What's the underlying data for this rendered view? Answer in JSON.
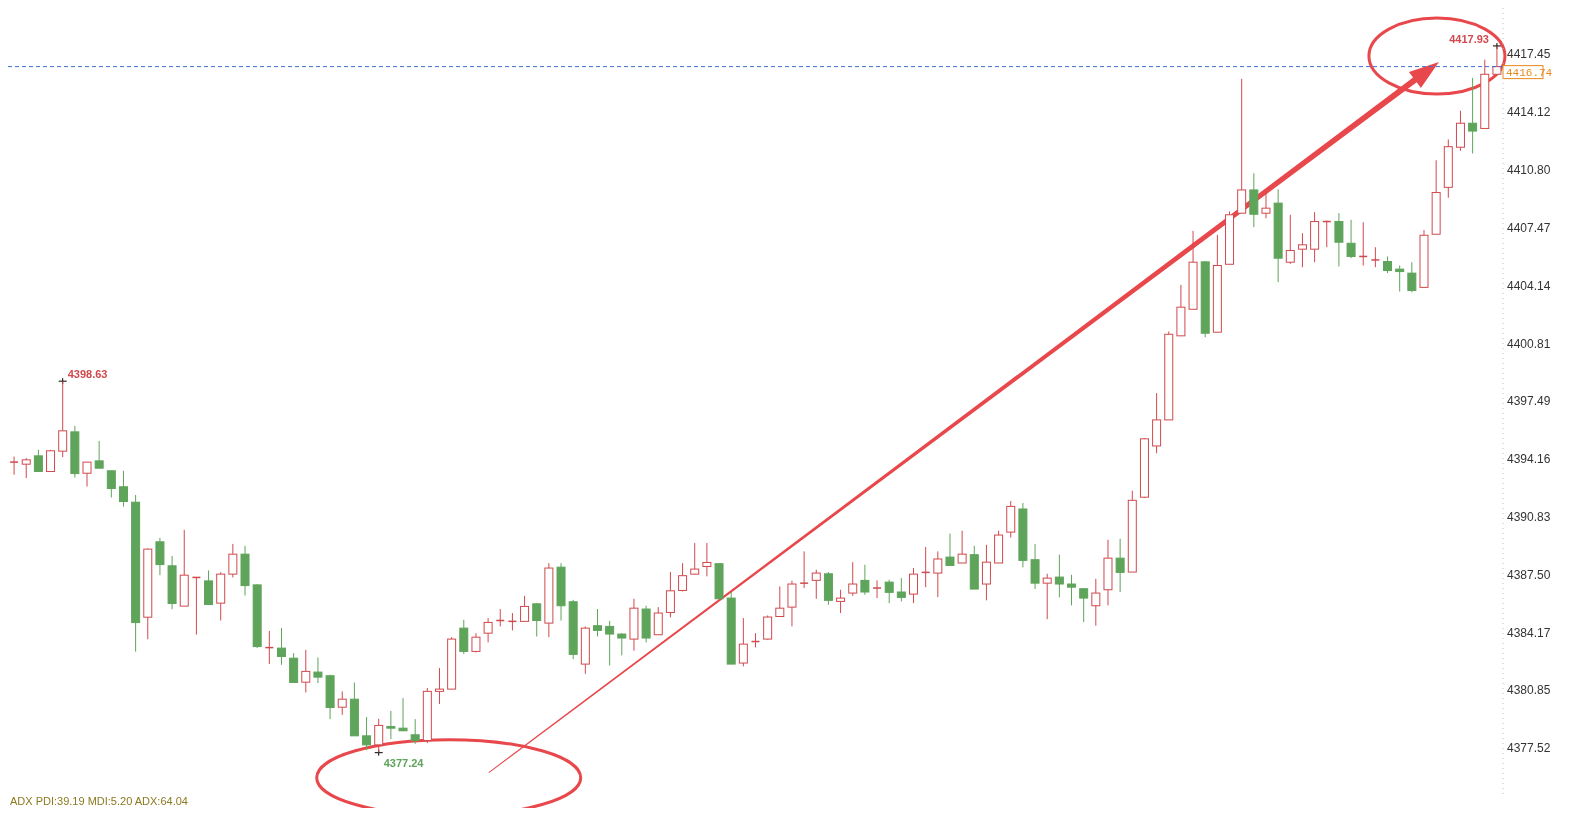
{
  "chart_data": {
    "type": "candlestick",
    "categories": [
      null,
      null,
      null,
      null,
      null,
      null,
      null,
      null,
      null,
      null,
      null,
      null,
      null,
      null,
      null,
      null,
      null,
      null,
      null,
      null,
      null,
      null,
      null,
      null,
      null,
      null,
      null,
      null,
      null,
      null,
      null,
      null,
      null,
      null,
      null,
      null,
      null,
      null,
      null,
      null,
      null,
      null,
      null,
      null,
      null,
      null,
      null,
      null,
      null,
      null,
      null,
      null,
      null,
      null,
      null,
      null,
      null,
      null,
      null,
      null,
      null,
      null,
      null,
      null,
      null,
      null,
      null,
      null,
      null,
      null,
      null,
      null,
      null,
      null,
      null,
      null,
      null,
      null,
      null,
      null,
      null,
      null,
      null,
      null,
      null,
      null,
      null,
      null,
      null,
      null,
      null,
      null,
      null,
      null,
      null,
      null,
      null,
      null,
      null,
      null,
      null,
      null,
      null,
      null,
      null,
      null,
      null,
      null,
      null,
      null,
      null,
      null,
      null,
      null,
      null,
      null,
      null,
      null,
      null,
      null,
      null,
      null,
      null
    ],
    "ohlc": [
      [
        4393.97,
        4394.29,
        4393.24,
        4393.97
      ],
      [
        4393.85,
        4394.2,
        4393.05,
        4394.1
      ],
      [
        4394.33,
        4394.68,
        4393.43,
        4393.43
      ],
      [
        4393.43,
        4394.68,
        4393.43,
        4394.62
      ],
      [
        4394.6,
        4398.63,
        4394.25,
        4395.77
      ],
      [
        4395.71,
        4396.06,
        4393.08,
        4393.31
      ],
      [
        4393.33,
        4393.97,
        4392.56,
        4393.97
      ],
      [
        4394.04,
        4395.19,
        4393.62,
        4393.62
      ],
      [
        4393.47,
        4393.47,
        4391.93,
        4392.45
      ],
      [
        4392.55,
        4393.47,
        4391.41,
        4391.7
      ],
      [
        4391.66,
        4392.08,
        4383.06,
        4384.73
      ],
      [
        4385.04,
        4389.0,
        4383.77,
        4388.96
      ],
      [
        4389.38,
        4389.61,
        4387.46,
        4388.07
      ],
      [
        4388.0,
        4388.57,
        4385.5,
        4385.83
      ],
      [
        4385.68,
        4390.07,
        4385.68,
        4387.46
      ],
      [
        4387.33,
        4387.33,
        4384.04,
        4387.33
      ],
      [
        4387.13,
        4387.73,
        4385.77,
        4385.77
      ],
      [
        4385.85,
        4387.63,
        4384.85,
        4387.52
      ],
      [
        4387.52,
        4389.26,
        4387.33,
        4388.67
      ],
      [
        4388.67,
        4389.15,
        4386.29,
        4386.86
      ],
      [
        4386.9,
        4386.94,
        4383.26,
        4383.35
      ],
      [
        4383.29,
        4384.25,
        4382.34,
        4383.29
      ],
      [
        4383.26,
        4384.41,
        4382.3,
        4382.78
      ],
      [
        4382.68,
        4382.97,
        4381.28,
        4381.28
      ],
      [
        4381.3,
        4383.16,
        4380.71,
        4381.92
      ],
      [
        4381.88,
        4382.72,
        4381.25,
        4381.59
      ],
      [
        4381.67,
        4381.73,
        4379.17,
        4379.84
      ],
      [
        4379.86,
        4380.77,
        4379.42,
        4380.32
      ],
      [
        4380.32,
        4381.28,
        4378.21,
        4378.21
      ],
      [
        4378.21,
        4379.29,
        4377.41,
        4377.69
      ],
      [
        4377.69,
        4379.19,
        4377.24,
        4378.81
      ],
      [
        4378.75,
        4379.65,
        4378.02,
        4378.65
      ],
      [
        4378.65,
        4380.38,
        4378.5,
        4378.5
      ],
      [
        4378.27,
        4379.17,
        4377.75,
        4377.94
      ],
      [
        4377.94,
        4380.96,
        4377.79,
        4380.77
      ],
      [
        4380.77,
        4382.11,
        4380.04,
        4380.9
      ],
      [
        4380.9,
        4383.89,
        4380.9,
        4383.78
      ],
      [
        4384.41,
        4384.89,
        4382.92,
        4383.07
      ],
      [
        4383.07,
        4384.12,
        4383.01,
        4383.89
      ],
      [
        4384.12,
        4384.99,
        4383.59,
        4384.74
      ],
      [
        4384.85,
        4385.51,
        4384.51,
        4384.85
      ],
      [
        4384.8,
        4385.28,
        4384.28,
        4384.8
      ],
      [
        4384.8,
        4386.27,
        4384.8,
        4385.66
      ],
      [
        4385.81,
        4385.85,
        4383.93,
        4384.85
      ],
      [
        4384.7,
        4388.15,
        4383.89,
        4387.87
      ],
      [
        4387.92,
        4388.15,
        4384.85,
        4385.7
      ],
      [
        4385.93,
        4386.04,
        4382.63,
        4382.9
      ],
      [
        4382.34,
        4384.51,
        4381.78,
        4384.41
      ],
      [
        4384.55,
        4385.51,
        4383.93,
        4384.28
      ],
      [
        4384.51,
        4384.83,
        4382.26,
        4384.07
      ],
      [
        4384.07,
        4384.12,
        4382.84,
        4383.84
      ],
      [
        4383.78,
        4386.1,
        4383.11,
        4385.56
      ],
      [
        4385.51,
        4385.7,
        4383.59,
        4383.84
      ],
      [
        4384.03,
        4385.62,
        4384.03,
        4385.28
      ],
      [
        4385.31,
        4387.64,
        4385.03,
        4386.56
      ],
      [
        4386.58,
        4388.15,
        4386.52,
        4387.43
      ],
      [
        4387.52,
        4389.31,
        4387.48,
        4387.81
      ],
      [
        4387.96,
        4389.31,
        4387.39,
        4388.19
      ],
      [
        4388.12,
        4388.12,
        4386.1,
        4386.1
      ],
      [
        4386.14,
        4386.49,
        4382.34,
        4382.34
      ],
      [
        4382.4,
        4384.99,
        4382.21,
        4383.49
      ],
      [
        4383.64,
        4384.12,
        4383.3,
        4383.64
      ],
      [
        4383.78,
        4385.14,
        4383.74,
        4385.05
      ],
      [
        4385.08,
        4386.81,
        4385.08,
        4385.56
      ],
      [
        4385.62,
        4387.14,
        4384.51,
        4386.95
      ],
      [
        4387.0,
        4388.83,
        4386.72,
        4387.0
      ],
      [
        4387.16,
        4387.77,
        4386.1,
        4387.58
      ],
      [
        4387.54,
        4387.64,
        4385.76,
        4386.01
      ],
      [
        4385.95,
        4386.62,
        4385.28,
        4386.14
      ],
      [
        4386.43,
        4388.21,
        4386.27,
        4386.95
      ],
      [
        4387.16,
        4388.06,
        4386.33,
        4386.49
      ],
      [
        4386.72,
        4387.16,
        4386.14,
        4386.72
      ],
      [
        4387.06,
        4387.2,
        4385.85,
        4386.47
      ],
      [
        4386.49,
        4387.29,
        4385.95,
        4386.18
      ],
      [
        4386.37,
        4387.87,
        4385.85,
        4387.52
      ],
      [
        4387.62,
        4389.08,
        4386.77,
        4387.62
      ],
      [
        4387.58,
        4388.83,
        4386.2,
        4388.39
      ],
      [
        4388.5,
        4389.85,
        4388.02,
        4388.02
      ],
      [
        4388.16,
        4390.02,
        4388.16,
        4388.67
      ],
      [
        4388.64,
        4389.15,
        4386.66,
        4386.66
      ],
      [
        4386.95,
        4389.21,
        4386.01,
        4388.21
      ],
      [
        4388.16,
        4390.02,
        4388.16,
        4389.77
      ],
      [
        4389.94,
        4391.73,
        4389.63,
        4391.42
      ],
      [
        4391.27,
        4391.61,
        4387.91,
        4388.31
      ],
      [
        4388.35,
        4389.25,
        4386.66,
        4387.0
      ],
      [
        4387.0,
        4387.54,
        4384.93,
        4387.29
      ],
      [
        4387.35,
        4388.64,
        4386.18,
        4386.95
      ],
      [
        4386.95,
        4387.48,
        4385.72,
        4386.77
      ],
      [
        4386.68,
        4386.72,
        4384.76,
        4386.14
      ],
      [
        4385.7,
        4387.25,
        4384.55,
        4386.43
      ],
      [
        4386.62,
        4389.5,
        4385.72,
        4388.44
      ],
      [
        4388.44,
        4389.56,
        4386.49,
        4387.62
      ],
      [
        4387.64,
        4392.32,
        4387.64,
        4391.77
      ],
      [
        4391.95,
        4395.35,
        4391.9,
        4395.31
      ],
      [
        4394.9,
        4397.94,
        4394.48,
        4396.4
      ],
      [
        4396.4,
        4401.49,
        4396.4,
        4401.33
      ],
      [
        4401.24,
        4404.17,
        4401.24,
        4402.89
      ],
      [
        4402.77,
        4407.28,
        4402.77,
        4405.48
      ],
      [
        4405.5,
        4405.54,
        4401.16,
        4401.39
      ],
      [
        4401.45,
        4407.05,
        4401.45,
        4405.29
      ],
      [
        4405.36,
        4408.4,
        4405.36,
        4408.21
      ],
      [
        4408.3,
        4416.04,
        4408.3,
        4409.64
      ],
      [
        4409.64,
        4410.6,
        4407.5,
        4408.24
      ],
      [
        4408.3,
        4409.49,
        4408.01,
        4408.59
      ],
      [
        4408.88,
        4409.68,
        4404.33,
        4405.71
      ],
      [
        4405.48,
        4408.21,
        4405.38,
        4406.15
      ],
      [
        4406.23,
        4407.15,
        4405.19,
        4406.48
      ],
      [
        4406.23,
        4408.36,
        4405.48,
        4407.82
      ],
      [
        4407.82,
        4407.88,
        4406.34,
        4407.82
      ],
      [
        4407.82,
        4408.3,
        4405.23,
        4406.63
      ],
      [
        4406.57,
        4407.92,
        4405.71,
        4405.81
      ],
      [
        4405.81,
        4407.78,
        4405.29,
        4405.81
      ],
      [
        4405.61,
        4406.34,
        4405.19,
        4405.61
      ],
      [
        4405.52,
        4405.81,
        4404.85,
        4405.0
      ],
      [
        4405.08,
        4405.29,
        4403.79,
        4404.94
      ],
      [
        4404.85,
        4405.48,
        4403.75,
        4403.85
      ],
      [
        4404.03,
        4407.33,
        4404.03,
        4407.03
      ],
      [
        4407.09,
        4411.35,
        4407.09,
        4409.49
      ],
      [
        4409.79,
        4412.55,
        4409.19,
        4412.13
      ],
      [
        4412.1,
        4414.2,
        4411.89,
        4413.48
      ],
      [
        4413.48,
        4416.09,
        4411.74,
        4413.03
      ],
      [
        4413.18,
        4417.14,
        4413.18,
        4416.3
      ],
      [
        4416.3,
        4417.93,
        4416.3,
        4416.74
      ]
    ],
    "ylim": [
      4374.4,
      4420.0
    ],
    "yticks": [
      4377.52,
      4380.85,
      4384.17,
      {
        "value": 4387.5,
        "label": "4387.50"
      },
      4390.83,
      4394.16,
      4397.49,
      4400.81,
      4404.14,
      4407.47,
      {
        "value": 4410.8,
        "label": "4410.80"
      },
      4414.12,
      4417.45
    ],
    "tick_labels": "y",
    "grid": false,
    "ref_lines": [
      {
        "axis": "y",
        "value": 4416.74,
        "label": "4416.74",
        "color": "#3b6fd4",
        "line_style": "dashed"
      }
    ],
    "annotations": [
      "4398.63",
      "4377.24",
      "4417.93",
      "ADX PDI:39.19 MDI:5.20 ADX:64.04"
    ]
  }
}
